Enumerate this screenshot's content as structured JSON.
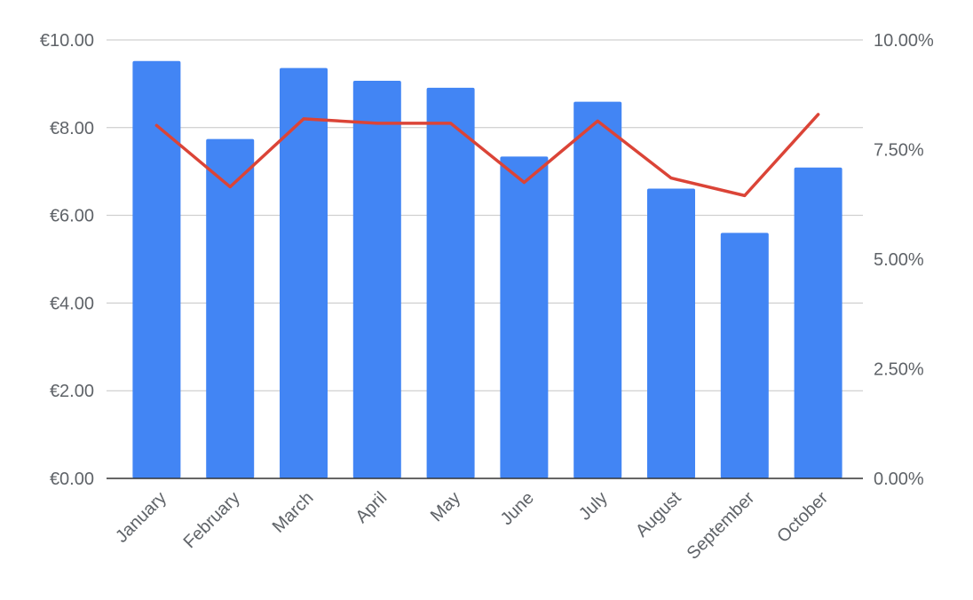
{
  "chart_data": {
    "type": "bar",
    "title": "",
    "xlabel": "",
    "ylabel": "",
    "categories": [
      "January",
      "February",
      "March",
      "April",
      "May",
      "June",
      "July",
      "August",
      "September",
      "October"
    ],
    "series": [
      {
        "type": "bar",
        "axis": "left",
        "color": "#4285f4",
        "values": [
          9.52,
          7.74,
          9.36,
          9.07,
          8.91,
          7.34,
          8.59,
          6.61,
          5.6,
          7.09
        ]
      },
      {
        "type": "line",
        "axis": "right",
        "color": "#db4437",
        "values": [
          8.05,
          6.65,
          8.2,
          8.1,
          8.1,
          6.75,
          8.15,
          6.85,
          6.45,
          8.3
        ]
      }
    ],
    "y_left": {
      "ylim": [
        0,
        10
      ],
      "ticks": [
        0,
        2,
        4,
        6,
        8,
        10
      ],
      "tick_labels": [
        "€0.00",
        "€2.00",
        "€4.00",
        "€6.00",
        "€8.00",
        "€10.00"
      ]
    },
    "y_right": {
      "ylim": [
        0,
        10
      ],
      "ticks": [
        0,
        2.5,
        5,
        7.5,
        10
      ],
      "tick_labels": [
        "0.00%",
        "2.50%",
        "5.00%",
        "7.50%",
        "10.00%"
      ]
    },
    "grid": true,
    "legend": "none"
  }
}
